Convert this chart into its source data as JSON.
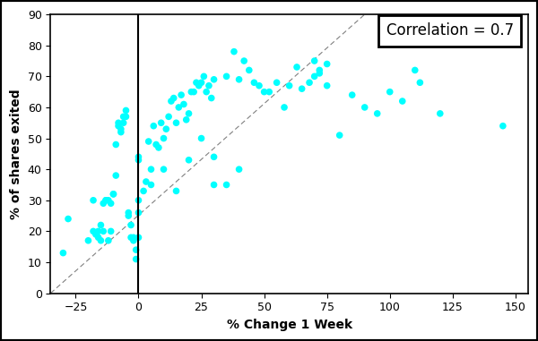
{
  "xlabel": "% Change 1 Week",
  "ylabel": "% of shares exited",
  "xlim": [
    -35,
    155
  ],
  "ylim": [
    0,
    90
  ],
  "xticks": [
    -25,
    0,
    25,
    50,
    75,
    100,
    125,
    150
  ],
  "yticks": [
    0,
    10,
    20,
    30,
    40,
    50,
    60,
    70,
    80,
    90
  ],
  "correlation_text": "Correlation = 0.7",
  "marker_color": "#00FFFF",
  "marker_size": 30,
  "scatter_x": [
    -30,
    -28,
    -20,
    -18,
    -17,
    -16,
    -15,
    -14,
    -13,
    -12,
    -11,
    -10,
    -9,
    -8,
    -7,
    -6,
    -5,
    -4,
    -3,
    -2,
    -1,
    -18,
    -16,
    -15,
    -14,
    -13,
    -12,
    -11,
    -10,
    -9,
    -8,
    -7,
    -6,
    -5,
    -4,
    -3,
    -2,
    -1,
    0,
    0,
    0,
    0,
    0,
    2,
    3,
    4,
    5,
    6,
    7,
    8,
    9,
    10,
    11,
    12,
    13,
    14,
    15,
    16,
    17,
    18,
    19,
    20,
    21,
    22,
    23,
    24,
    25,
    26,
    27,
    28,
    29,
    30,
    5,
    10,
    15,
    20,
    25,
    30,
    35,
    40,
    30,
    35,
    38,
    40,
    42,
    44,
    46,
    48,
    50,
    52,
    55,
    58,
    60,
    63,
    65,
    68,
    70,
    72,
    75,
    70,
    72,
    75,
    80,
    85,
    90,
    95,
    100,
    105,
    110,
    112,
    120,
    145
  ],
  "scatter_y": [
    13,
    24,
    17,
    20,
    19,
    18,
    22,
    29,
    30,
    17,
    20,
    32,
    38,
    55,
    52,
    55,
    57,
    26,
    22,
    18,
    14,
    30,
    20,
    17,
    20,
    30,
    30,
    29,
    32,
    48,
    54,
    53,
    57,
    59,
    25,
    18,
    17,
    11,
    44,
    43,
    30,
    26,
    18,
    33,
    36,
    49,
    40,
    54,
    48,
    47,
    55,
    50,
    53,
    57,
    62,
    63,
    55,
    60,
    64,
    61,
    56,
    58,
    65,
    65,
    68,
    67,
    68,
    70,
    65,
    67,
    63,
    44,
    35,
    40,
    33,
    43,
    50,
    35,
    35,
    40,
    69,
    70,
    78,
    69,
    75,
    72,
    68,
    67,
    65,
    65,
    68,
    60,
    67,
    73,
    66,
    68,
    70,
    71,
    67,
    75,
    72,
    74,
    51,
    64,
    60,
    58,
    65,
    62,
    72,
    68,
    58,
    54
  ],
  "dashed_line_x": [
    -35,
    90
  ],
  "dashed_line_y": [
    0,
    90
  ],
  "vline_x": 0,
  "background_color": "#ffffff",
  "outer_border_color": "#000000",
  "figure_border": true
}
